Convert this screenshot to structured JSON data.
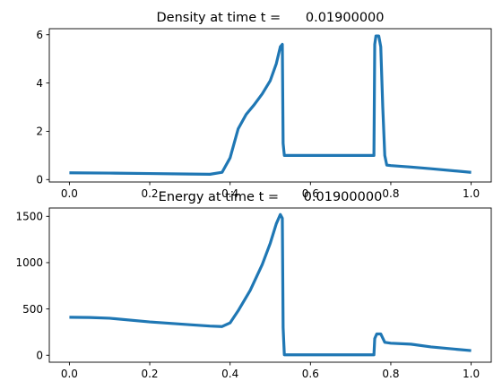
{
  "chart_data": [
    {
      "type": "line",
      "title": "Density at time t =      0.01900000",
      "xlabel": "",
      "ylabel": "",
      "xlim": [
        -0.05,
        1.05
      ],
      "ylim": [
        -0.1,
        6.25
      ],
      "xticks": [
        0.0,
        0.2,
        0.4,
        0.6,
        0.8,
        1.0
      ],
      "xtick_labels": [
        "0.0",
        "0.2",
        "0.4",
        "0.6",
        "0.8",
        "1.0"
      ],
      "yticks": [
        0,
        2,
        4,
        6
      ],
      "ytick_labels": [
        "0",
        "2",
        "4",
        "6"
      ],
      "grid": false,
      "series": [
        {
          "color": "#1f77b4",
          "x": [
            0.0,
            0.1,
            0.2,
            0.3,
            0.35,
            0.38,
            0.4,
            0.42,
            0.44,
            0.46,
            0.48,
            0.5,
            0.515,
            0.525,
            0.53,
            0.532,
            0.535,
            0.6,
            0.7,
            0.758,
            0.76,
            0.763,
            0.77,
            0.775,
            0.78,
            0.785,
            0.79,
            0.8,
            0.85,
            0.9,
            1.0
          ],
          "y": [
            0.28,
            0.27,
            0.25,
            0.23,
            0.22,
            0.3,
            0.9,
            2.1,
            2.7,
            3.1,
            3.55,
            4.1,
            4.8,
            5.5,
            5.6,
            1.5,
            1.0,
            1.0,
            1.0,
            1.0,
            5.6,
            5.95,
            5.95,
            5.5,
            3.0,
            1.0,
            0.6,
            0.58,
            0.52,
            0.45,
            0.3
          ]
        }
      ]
    },
    {
      "type": "line",
      "title": "Energy at time t =      0.01900000",
      "xlabel": "",
      "ylabel": "",
      "xlim": [
        -0.05,
        1.05
      ],
      "ylim": [
        -75,
        1590
      ],
      "xticks": [
        0.0,
        0.2,
        0.4,
        0.6,
        0.8,
        1.0
      ],
      "xtick_labels": [
        "0.0",
        "0.2",
        "0.4",
        "0.6",
        "0.8",
        "1.0"
      ],
      "yticks": [
        0,
        500,
        1000,
        1500
      ],
      "ytick_labels": [
        "0",
        "500",
        "1000",
        "1500"
      ],
      "grid": false,
      "series": [
        {
          "color": "#1f77b4",
          "x": [
            0.0,
            0.05,
            0.1,
            0.2,
            0.3,
            0.35,
            0.38,
            0.4,
            0.42,
            0.45,
            0.48,
            0.5,
            0.515,
            0.525,
            0.53,
            0.532,
            0.535,
            0.6,
            0.7,
            0.758,
            0.76,
            0.765,
            0.775,
            0.785,
            0.8,
            0.85,
            0.9,
            1.0
          ],
          "y": [
            410,
            408,
            400,
            360,
            330,
            315,
            310,
            350,
            480,
            700,
            980,
            1210,
            1420,
            1520,
            1480,
            300,
            5,
            5,
            5,
            5,
            180,
            230,
            230,
            140,
            130,
            120,
            90,
            50
          ]
        }
      ]
    }
  ]
}
